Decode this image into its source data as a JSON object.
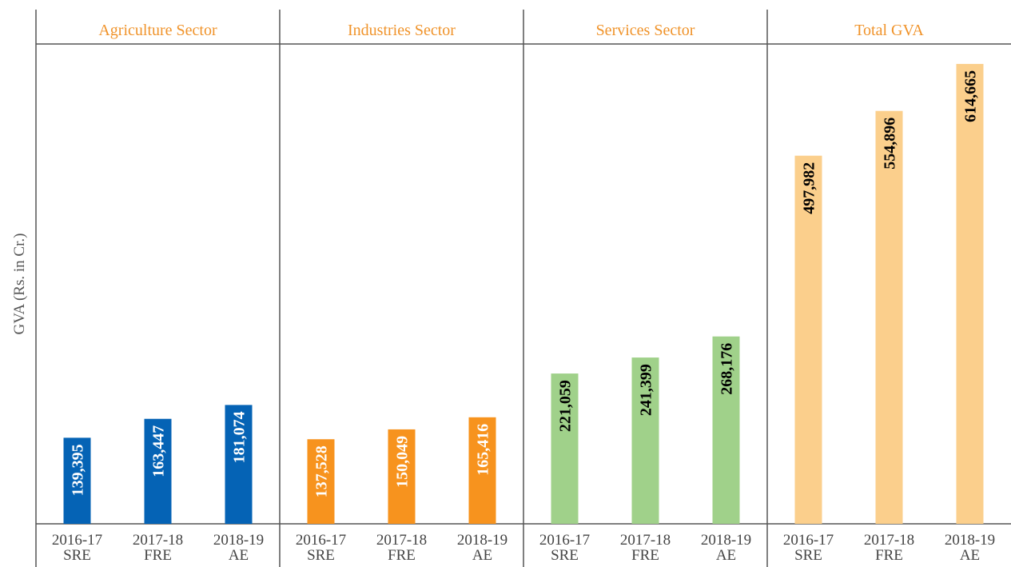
{
  "chart_data": [
    {
      "type": "bar",
      "title": "Agriculture Sector",
      "y_label": "GVA (Rs. in Cr.)",
      "categories": [
        "2016-17 SRE",
        "2017-18 FRE",
        "2018-19 AE"
      ],
      "values": [
        139395,
        163447,
        181074
      ],
      "value_labels": [
        "139,395",
        "163,447",
        "181,074"
      ],
      "color": "#0563b5",
      "label_color": "#ffffff",
      "ylim": [
        30000,
        640000
      ]
    },
    {
      "type": "bar",
      "title": "Industries Sector",
      "categories": [
        "2016-17 SRE",
        "2017-18 FRE",
        "2018-19 AE"
      ],
      "values": [
        137528,
        150049,
        165416
      ],
      "value_labels": [
        "137,528",
        "150,049",
        "165,416"
      ],
      "color": "#f7931e",
      "label_color": "#ffffff",
      "ylim": [
        30000,
        640000
      ]
    },
    {
      "type": "bar",
      "title": "Services Sector",
      "categories": [
        "2016-17 SRE",
        "2017-18 FRE",
        "2018-19 AE"
      ],
      "values": [
        221059,
        241399,
        268176
      ],
      "value_labels": [
        "221,059",
        "241,399",
        "268,176"
      ],
      "color": "#a0d18a",
      "label_color": "#000000",
      "ylim": [
        30000,
        640000
      ]
    },
    {
      "type": "bar",
      "title": "Total GVA",
      "categories": [
        "2016-17 SRE",
        "2017-18 FRE",
        "2018-19 AE"
      ],
      "values": [
        497982,
        554896,
        614665
      ],
      "value_labels": [
        "497,982",
        "554,896",
        "614,665"
      ],
      "color": "#fbcf8c",
      "label_color": "#000000",
      "ylim": [
        30000,
        640000
      ]
    }
  ]
}
